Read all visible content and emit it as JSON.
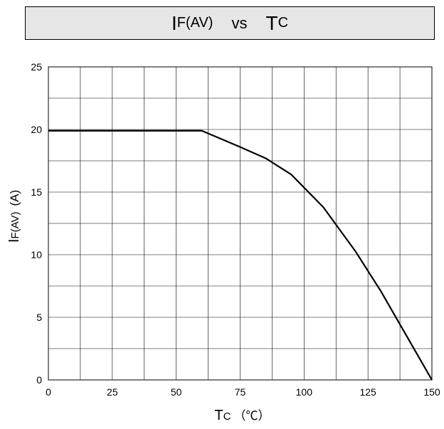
{
  "title": {
    "y_symbol": "I",
    "y_subscript": "F(AV)",
    "vs": "vs",
    "x_symbol": "T",
    "x_subscript": "C"
  },
  "chart_data": {
    "type": "line",
    "xlabel": {
      "symbol": "T",
      "subscript": "C",
      "unit": "（℃）"
    },
    "ylabel": {
      "symbol": "I",
      "subscript": "F(AV)",
      "unit": "(A)"
    },
    "xlim": [
      0,
      150
    ],
    "ylim": [
      0,
      25
    ],
    "x_ticks": [
      0,
      25,
      50,
      75,
      100,
      125,
      150
    ],
    "y_ticks": [
      0,
      5,
      10,
      15,
      20,
      25
    ],
    "x_grid_step": 12.5,
    "y_grid_step": 2.5,
    "grid": true,
    "series": [
      {
        "x": [
          0,
          60,
          75,
          85,
          95,
          107.5,
          120,
          130,
          150
        ],
        "y": [
          19.9,
          19.9,
          18.6,
          17.7,
          16.4,
          13.8,
          10.3,
          7.1,
          0
        ]
      }
    ]
  }
}
